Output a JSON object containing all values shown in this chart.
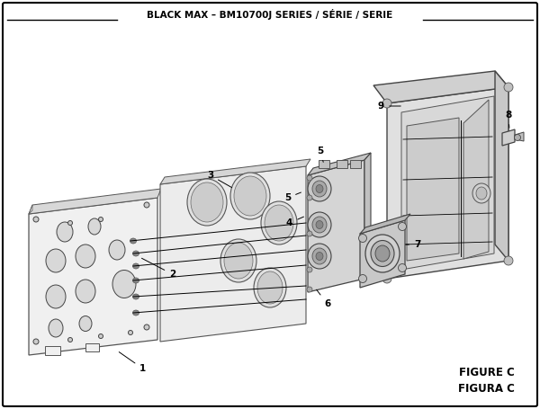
{
  "title": "BLACK MAX – BM10700J SERIES / SÉRIE / SERIE",
  "figure_label": "FIGURE C",
  "figura_label": "FIGURA C",
  "bg_color": "#ffffff",
  "line_color": "#000000",
  "part_edge_color": "#444444",
  "title_fontsize": 7.5,
  "label_fontsize": 7.5,
  "figure_label_fontsize": 8.5
}
